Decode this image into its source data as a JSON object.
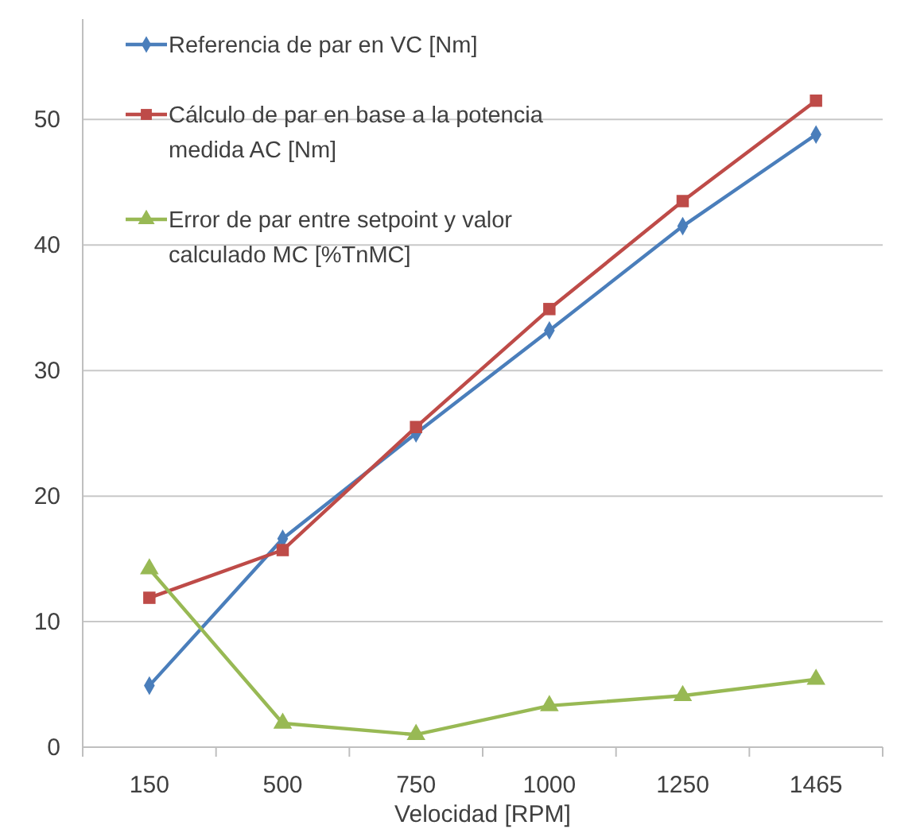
{
  "chart_data": {
    "type": "line",
    "xlabel": "Velocidad [RPM]",
    "categories": [
      "150",
      "500",
      "750",
      "1000",
      "1250",
      "1465"
    ],
    "series": [
      {
        "name": "Referencia de par en VC [Nm]",
        "color": "#4a7ebb",
        "marker": "diamond",
        "values": [
          4.9,
          16.6,
          25.0,
          33.2,
          41.5,
          48.8
        ]
      },
      {
        "name": "Cálculo de par en base a la potencia medida AC [Nm]",
        "color": "#be4b48",
        "marker": "square",
        "values": [
          11.9,
          15.7,
          25.5,
          34.9,
          43.5,
          51.5
        ]
      },
      {
        "name": "Error de par entre setpoint y valor calculado MC [%TnMC]",
        "color": "#98b954",
        "marker": "triangle",
        "values": [
          14.2,
          1.9,
          1.0,
          3.3,
          4.1,
          5.4
        ]
      }
    ],
    "ylim": [
      0,
      58
    ],
    "yticks": [
      0,
      10,
      20,
      30,
      40,
      50
    ],
    "grid": "y",
    "legend": "top left",
    "line_style": "solid"
  }
}
